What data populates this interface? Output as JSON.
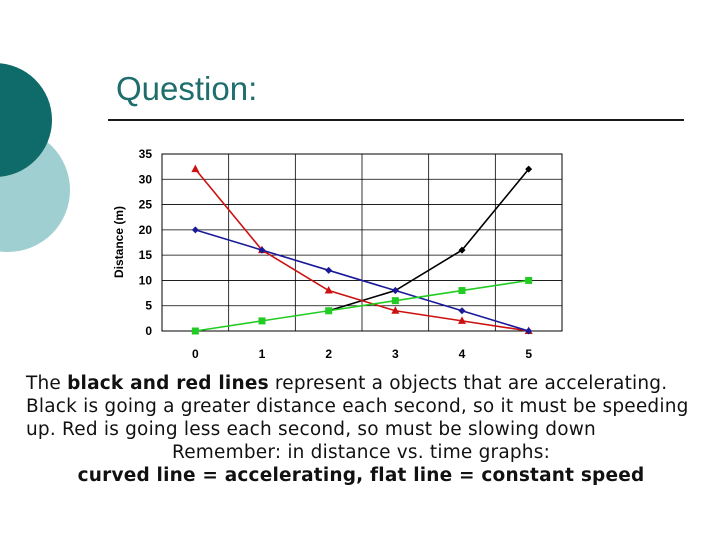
{
  "slide": {
    "title": "Question:",
    "paragraph": {
      "pre": "The ",
      "bold": "black and red lines",
      "post": " represent a objects that are accelerating. Black is going a greater distance each second, so it must be speeding up. Red is going less each second, so must be slowing down"
    },
    "remember": "Remember: in distance vs. time graphs:",
    "rule": "curved line = accelerating, flat line = constant speed"
  },
  "colors": {
    "accent_dark": "#0e6b69",
    "accent_light": "#9fcfd0"
  },
  "chart_data": {
    "type": "line",
    "ylabel": "Distance (m)",
    "xlabel": "",
    "title": "",
    "x": [
      0,
      1,
      2,
      3,
      4,
      5
    ],
    "ylim": [
      0,
      35
    ],
    "yticks": [
      0,
      5,
      10,
      15,
      20,
      25,
      30,
      35
    ],
    "grid": true,
    "legend": "none",
    "series": [
      {
        "color": "#000000",
        "marker": "diamond",
        "points": [
          [
            2,
            4
          ],
          [
            3,
            8
          ],
          [
            4,
            16
          ],
          [
            5,
            32
          ]
        ]
      },
      {
        "color": "#cc1111",
        "marker": "triangle",
        "points": [
          [
            0,
            32
          ],
          [
            1,
            16
          ],
          [
            2,
            8
          ],
          [
            3,
            4
          ],
          [
            4,
            2
          ],
          [
            5,
            0
          ]
        ]
      },
      {
        "color": "#1a1a99",
        "marker": "diamond",
        "points": [
          [
            0,
            20
          ],
          [
            1,
            16
          ],
          [
            2,
            12
          ],
          [
            3,
            8
          ],
          [
            4,
            4
          ],
          [
            5,
            0
          ]
        ]
      },
      {
        "color": "#22cc22",
        "marker": "square",
        "points": [
          [
            0,
            0
          ],
          [
            1,
            2
          ],
          [
            2,
            4
          ],
          [
            3,
            6
          ],
          [
            4,
            8
          ],
          [
            5,
            10
          ]
        ]
      }
    ]
  }
}
